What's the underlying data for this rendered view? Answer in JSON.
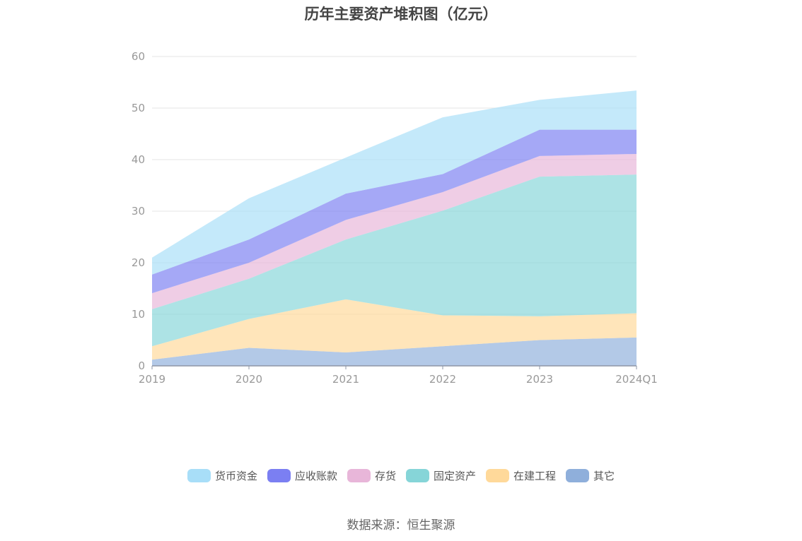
{
  "chart_data": {
    "type": "area",
    "title": "历年主要资产堆积图（亿元）",
    "xlabel": "",
    "ylabel": "",
    "ylim": [
      0,
      60
    ],
    "yticks": [
      0,
      10,
      20,
      30,
      40,
      50,
      60
    ],
    "grid": true,
    "stacked": true,
    "legend_position": "bottom",
    "categories": [
      "2019",
      "2020",
      "2021",
      "2022",
      "2023",
      "2024Q1"
    ],
    "series": [
      {
        "name": "其它",
        "color": "#8FAFDB",
        "values": [
          1.2,
          3.5,
          2.6,
          3.8,
          5.0,
          5.5
        ]
      },
      {
        "name": "在建工程",
        "color": "#FFD99A",
        "values": [
          2.6,
          5.6,
          10.3,
          6.0,
          4.6,
          4.7
        ]
      },
      {
        "name": "固定资产",
        "color": "#86D5D8",
        "values": [
          7.2,
          7.8,
          11.6,
          20.3,
          27.1,
          26.9
        ]
      },
      {
        "name": "存货",
        "color": "#E8B6D9",
        "values": [
          3.1,
          3.1,
          3.8,
          3.6,
          4.0,
          4.0
        ]
      },
      {
        "name": "应收账款",
        "color": "#7B7FF2",
        "values": [
          3.6,
          4.5,
          5.1,
          3.5,
          5.1,
          4.7
        ]
      },
      {
        "name": "货币资金",
        "color": "#A8DEF8",
        "values": [
          3.3,
          8.0,
          7.0,
          11.0,
          5.8,
          7.6
        ]
      }
    ]
  },
  "legend_order": [
    "货币资金",
    "应收账款",
    "存货",
    "固定资产",
    "在建工程",
    "其它"
  ],
  "source": "数据来源：恒生聚源"
}
